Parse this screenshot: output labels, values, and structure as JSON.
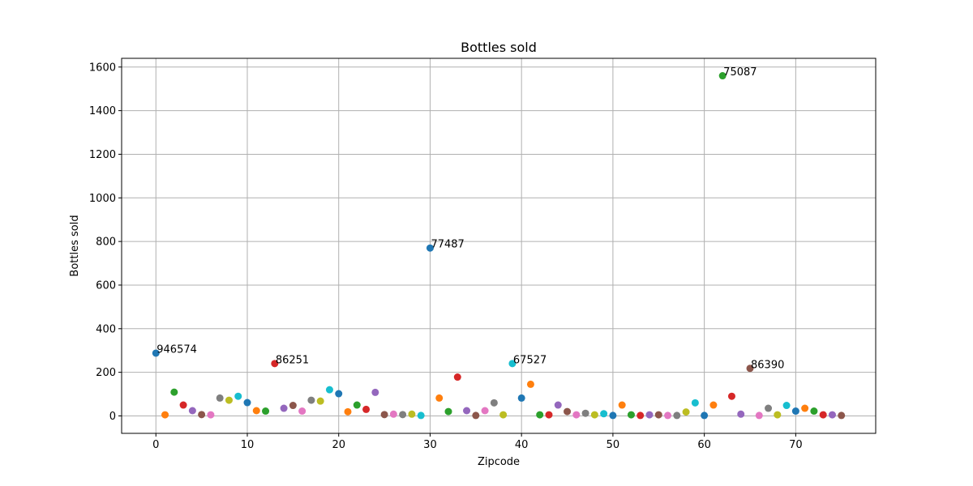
{
  "chart_data": {
    "type": "scatter",
    "title": "Bottles sold",
    "xlabel": "Zipcode",
    "ylabel": "Bottles sold",
    "xlim": [
      -3.75,
      78.75
    ],
    "ylim": [
      -80,
      1640
    ],
    "xticks": [
      0,
      10,
      20,
      30,
      40,
      50,
      60,
      70
    ],
    "yticks": [
      0,
      200,
      400,
      600,
      800,
      1000,
      1200,
      1400,
      1600
    ],
    "grid": true,
    "palette": [
      "#1f77b4",
      "#ff7f0e",
      "#2ca02c",
      "#d62728",
      "#9467bd",
      "#8c564b",
      "#e377c2",
      "#7f7f7f",
      "#bcbd22",
      "#17becf"
    ],
    "x": [
      0,
      1,
      2,
      3,
      4,
      5,
      6,
      7,
      8,
      9,
      10,
      11,
      12,
      13,
      14,
      15,
      16,
      17,
      18,
      19,
      20,
      21,
      22,
      23,
      24,
      25,
      26,
      27,
      28,
      29,
      30,
      31,
      32,
      33,
      34,
      35,
      36,
      37,
      38,
      39,
      40,
      41,
      42,
      43,
      44,
      45,
      46,
      47,
      48,
      49,
      50,
      51,
      52,
      53,
      54,
      55,
      56,
      57,
      58,
      59,
      60,
      61,
      62,
      63,
      64,
      65,
      66,
      67,
      68,
      69,
      70,
      71,
      72,
      73,
      74,
      75
    ],
    "y": [
      288,
      5,
      109,
      50,
      24,
      6,
      5,
      82,
      72,
      90,
      61,
      24,
      22,
      240,
      35,
      48,
      22,
      72,
      68,
      120,
      102,
      19,
      50,
      30,
      108,
      6,
      8,
      6,
      8,
      2,
      770,
      82,
      20,
      178,
      24,
      2,
      24,
      60,
      5,
      240,
      82,
      145,
      5,
      5,
      50,
      20,
      5,
      12,
      5,
      10,
      2,
      50,
      5,
      2,
      5,
      5,
      2,
      2,
      18,
      60,
      2,
      50,
      1560,
      90,
      8,
      218,
      2,
      35,
      5,
      48,
      22,
      35,
      22,
      5,
      5,
      2
    ],
    "annotations": [
      {
        "x": 0,
        "y": 288,
        "text": "946574"
      },
      {
        "x": 13,
        "y": 240,
        "text": "86251"
      },
      {
        "x": 30,
        "y": 770,
        "text": "77487"
      },
      {
        "x": 39,
        "y": 240,
        "text": "67527"
      },
      {
        "x": 62,
        "y": 1560,
        "text": "75087"
      },
      {
        "x": 65,
        "y": 218,
        "text": "86390"
      }
    ]
  }
}
